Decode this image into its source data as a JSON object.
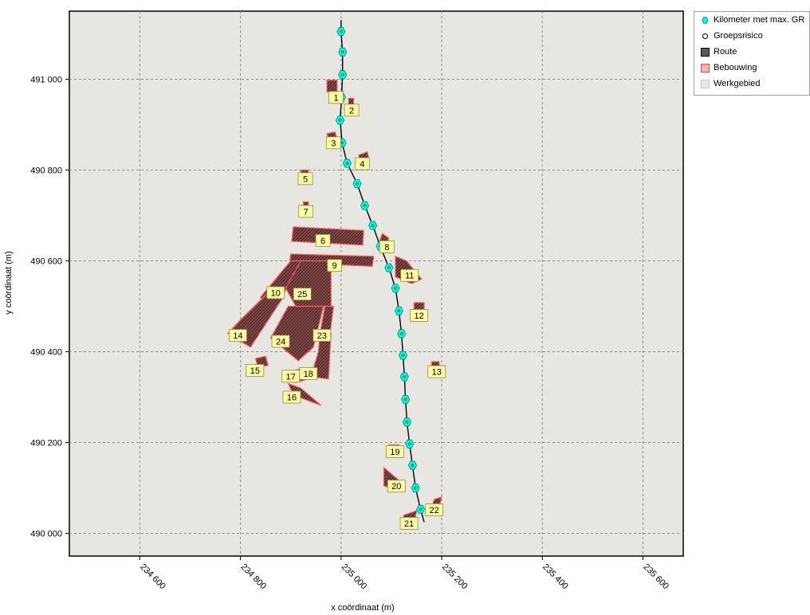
{
  "map": {
    "x_axis_label": "x coördinaat (m)",
    "y_axis_label": "y coördinaat (m)",
    "x_range": [
      234460,
      235680
    ],
    "y_range": [
      489950,
      491150
    ],
    "x_ticks": [
      {
        "value": 234600,
        "label": "234 600"
      },
      {
        "value": 234800,
        "label": "234 800"
      },
      {
        "value": 235000,
        "label": "235 000"
      },
      {
        "value": 235200,
        "label": "235 200"
      },
      {
        "value": 235400,
        "label": "235 400"
      },
      {
        "value": 235600,
        "label": "235 600"
      }
    ],
    "y_ticks": [
      {
        "value": 490000,
        "label": "490 000"
      },
      {
        "value": 490200,
        "label": "490 200"
      },
      {
        "value": 490400,
        "label": "490 400"
      },
      {
        "value": 490600,
        "label": "490 600"
      },
      {
        "value": 490800,
        "label": "490 800"
      },
      {
        "value": 491000,
        "label": "491 000"
      }
    ],
    "colors": {
      "background": "#e8e6e1",
      "grid": "#8a8a8a",
      "route": "#000000",
      "route_marker": "#00ffe8",
      "route_marker_stroke": "#009a8a",
      "building_fill": "#7a3a3a",
      "building_stroke": "#ff5a5a",
      "label_fill": "#fffe9e",
      "label_stroke": "#8a8a5a"
    },
    "route": [
      [
        235000,
        491130
      ],
      [
        235000,
        491105
      ],
      [
        235003,
        491060
      ],
      [
        235003,
        491010
      ],
      [
        235001,
        490960
      ],
      [
        234998,
        490910
      ],
      [
        235002,
        490860
      ],
      [
        235012,
        490815
      ],
      [
        235032,
        490770
      ],
      [
        235047,
        490722
      ],
      [
        235063,
        490678
      ],
      [
        235078,
        490632
      ],
      [
        235095,
        490585
      ],
      [
        235108,
        490540
      ],
      [
        235115,
        490490
      ],
      [
        235120,
        490440
      ],
      [
        235123,
        490392
      ],
      [
        235126,
        490345
      ],
      [
        235128,
        490295
      ],
      [
        235131,
        490245
      ],
      [
        235136,
        490197
      ],
      [
        235142,
        490150
      ],
      [
        235148,
        490100
      ],
      [
        235158,
        490053
      ],
      [
        235165,
        490025
      ]
    ],
    "route_markers": [
      [
        235000,
        491105
      ],
      [
        235003,
        491060
      ],
      [
        235003,
        491010
      ],
      [
        235001,
        490960
      ],
      [
        234998,
        490910
      ],
      [
        235002,
        490860
      ],
      [
        235012,
        490815
      ],
      [
        235032,
        490770
      ],
      [
        235047,
        490722
      ],
      [
        235063,
        490678
      ],
      [
        235078,
        490632
      ],
      [
        235095,
        490585
      ],
      [
        235108,
        490540
      ],
      [
        235115,
        490490
      ],
      [
        235120,
        490440
      ],
      [
        235123,
        490392
      ],
      [
        235126,
        490345
      ],
      [
        235128,
        490295
      ],
      [
        235131,
        490245
      ],
      [
        235136,
        490197
      ],
      [
        235142,
        490150
      ],
      [
        235148,
        490100
      ],
      [
        235158,
        490053
      ]
    ],
    "buildings": [
      {
        "id": "b1",
        "pts": [
          [
            234972,
            490998
          ],
          [
            234992,
            490998
          ],
          [
            234992,
            490972
          ],
          [
            234972,
            490972
          ]
        ]
      },
      {
        "id": "b2",
        "pts": [
          [
            235015,
            490958
          ],
          [
            235025,
            490958
          ],
          [
            235025,
            490940
          ],
          [
            235015,
            490940
          ]
        ]
      },
      {
        "id": "b3",
        "pts": [
          [
            234972,
            490880
          ],
          [
            234988,
            490884
          ],
          [
            234992,
            490868
          ],
          [
            234975,
            490864
          ]
        ]
      },
      {
        "id": "b4",
        "pts": [
          [
            235035,
            490833
          ],
          [
            235052,
            490840
          ],
          [
            235056,
            490822
          ],
          [
            235039,
            490815
          ]
        ]
      },
      {
        "id": "b5",
        "pts": [
          [
            234920,
            490800
          ],
          [
            234935,
            490800
          ],
          [
            234935,
            490785
          ],
          [
            234920,
            490785
          ]
        ]
      },
      {
        "id": "b7",
        "pts": [
          [
            234925,
            490730
          ],
          [
            234935,
            490730
          ],
          [
            234935,
            490716
          ],
          [
            234925,
            490716
          ]
        ]
      },
      {
        "id": "b6",
        "pts": [
          [
            234905,
            490675
          ],
          [
            235045,
            490667
          ],
          [
            235043,
            490635
          ],
          [
            234902,
            490643
          ]
        ]
      },
      {
        "id": "b8",
        "pts": [
          [
            235082,
            490660
          ],
          [
            235095,
            490650
          ],
          [
            235090,
            490635
          ],
          [
            235077,
            490645
          ]
        ]
      },
      {
        "id": "b9",
        "pts": [
          [
            234900,
            490615
          ],
          [
            235065,
            490610
          ],
          [
            235062,
            490588
          ],
          [
            234898,
            490596
          ]
        ]
      },
      {
        "id": "b11",
        "pts": [
          [
            235108,
            490610
          ],
          [
            235130,
            490600
          ],
          [
            235160,
            490560
          ],
          [
            235140,
            490550
          ],
          [
            235108,
            490565
          ]
        ]
      },
      {
        "id": "b10",
        "pts": [
          [
            234900,
            490600
          ],
          [
            234920,
            490600
          ],
          [
            234880,
            490515
          ],
          [
            234855,
            490495
          ],
          [
            234840,
            490520
          ]
        ]
      },
      {
        "id": "b25",
        "pts": [
          [
            234920,
            490600
          ],
          [
            234980,
            490600
          ],
          [
            234980,
            490500
          ],
          [
            234910,
            490500
          ],
          [
            234890,
            490540
          ]
        ]
      },
      {
        "id": "b14",
        "pts": [
          [
            234855,
            490530
          ],
          [
            234885,
            490520
          ],
          [
            234820,
            490410
          ],
          [
            234775,
            490440
          ],
          [
            234800,
            490470
          ]
        ]
      },
      {
        "id": "b24",
        "pts": [
          [
            234895,
            490500
          ],
          [
            234965,
            490500
          ],
          [
            234945,
            490410
          ],
          [
            234915,
            490380
          ],
          [
            234860,
            490430
          ]
        ]
      },
      {
        "id": "b23",
        "pts": [
          [
            234968,
            490500
          ],
          [
            234985,
            490500
          ],
          [
            234978,
            490440
          ],
          [
            234958,
            490440
          ]
        ]
      },
      {
        "id": "b18",
        "pts": [
          [
            234958,
            490440
          ],
          [
            234980,
            490440
          ],
          [
            234975,
            490340
          ],
          [
            234940,
            490345
          ],
          [
            234955,
            490400
          ]
        ]
      },
      {
        "id": "b12",
        "pts": [
          [
            235145,
            490508
          ],
          [
            235165,
            490508
          ],
          [
            235165,
            490490
          ],
          [
            235145,
            490490
          ]
        ]
      },
      {
        "id": "b13",
        "pts": [
          [
            235180,
            490378
          ],
          [
            235195,
            490378
          ],
          [
            235195,
            490365
          ],
          [
            235180,
            490365
          ]
        ]
      },
      {
        "id": "b15",
        "pts": [
          [
            234830,
            490385
          ],
          [
            234850,
            490390
          ],
          [
            234855,
            490370
          ],
          [
            234835,
            490365
          ]
        ]
      },
      {
        "id": "b17",
        "pts": [
          [
            234900,
            490355
          ],
          [
            234925,
            490365
          ],
          [
            234935,
            490340
          ],
          [
            234910,
            490332
          ]
        ]
      },
      {
        "id": "b16",
        "pts": [
          [
            234895,
            490330
          ],
          [
            234920,
            490320
          ],
          [
            234960,
            490282
          ],
          [
            234940,
            490290
          ],
          [
            234905,
            490305
          ]
        ]
      },
      {
        "id": "b19",
        "pts": [
          [
            235095,
            490195
          ],
          [
            235115,
            490195
          ],
          [
            235115,
            490182
          ],
          [
            235095,
            490182
          ]
        ]
      },
      {
        "id": "b20",
        "pts": [
          [
            235085,
            490145
          ],
          [
            235122,
            490110
          ],
          [
            235112,
            490093
          ],
          [
            235085,
            490105
          ]
        ]
      },
      {
        "id": "b22",
        "pts": [
          [
            235185,
            490075
          ],
          [
            235200,
            490080
          ],
          [
            235196,
            490062
          ],
          [
            235181,
            490060
          ]
        ]
      },
      {
        "id": "b21",
        "pts": [
          [
            235125,
            490040
          ],
          [
            235150,
            490050
          ],
          [
            235146,
            490025
          ],
          [
            235121,
            490020
          ]
        ]
      }
    ],
    "labels": [
      {
        "text": "1",
        "x": 234990,
        "y": 490960
      },
      {
        "text": "2",
        "x": 235021,
        "y": 490932
      },
      {
        "text": "3",
        "x": 234985,
        "y": 490860
      },
      {
        "text": "4",
        "x": 235042,
        "y": 490814
      },
      {
        "text": "5",
        "x": 234929,
        "y": 490781
      },
      {
        "text": "7",
        "x": 234930,
        "y": 490709
      },
      {
        "text": "6",
        "x": 234964,
        "y": 490645
      },
      {
        "text": "8",
        "x": 235091,
        "y": 490631
      },
      {
        "text": "9",
        "x": 234987,
        "y": 490590
      },
      {
        "text": "11",
        "x": 235136,
        "y": 490568
      },
      {
        "text": "10",
        "x": 234870,
        "y": 490530
      },
      {
        "text": "25",
        "x": 234923,
        "y": 490527
      },
      {
        "text": "12",
        "x": 235155,
        "y": 490480
      },
      {
        "text": "14",
        "x": 234795,
        "y": 490436
      },
      {
        "text": "23",
        "x": 234962,
        "y": 490436
      },
      {
        "text": "24",
        "x": 234880,
        "y": 490423
      },
      {
        "text": "13",
        "x": 235190,
        "y": 490356
      },
      {
        "text": "15",
        "x": 234829,
        "y": 490359
      },
      {
        "text": "17",
        "x": 234900,
        "y": 490346
      },
      {
        "text": "18",
        "x": 234935,
        "y": 490352
      },
      {
        "text": "16",
        "x": 234902,
        "y": 490300
      },
      {
        "text": "19",
        "x": 235107,
        "y": 490180
      },
      {
        "text": "20",
        "x": 235110,
        "y": 490104
      },
      {
        "text": "22",
        "x": 235185,
        "y": 490052
      },
      {
        "text": "21",
        "x": 235135,
        "y": 490022
      }
    ]
  },
  "legend": {
    "items": [
      {
        "label": "Kilometer met max. GR",
        "symbol": "marker",
        "name": "legend-km-max-gr"
      },
      {
        "label": "Groepsrisico",
        "symbol": "circle",
        "name": "legend-groepsrisico"
      },
      {
        "label": "Route",
        "symbol": "route",
        "name": "legend-route"
      },
      {
        "label": "Bebouwing",
        "symbol": "bebouwing",
        "name": "legend-bebouwing"
      },
      {
        "label": "Werkgebied",
        "symbol": "werkgebied",
        "name": "legend-werkgebied"
      }
    ]
  }
}
